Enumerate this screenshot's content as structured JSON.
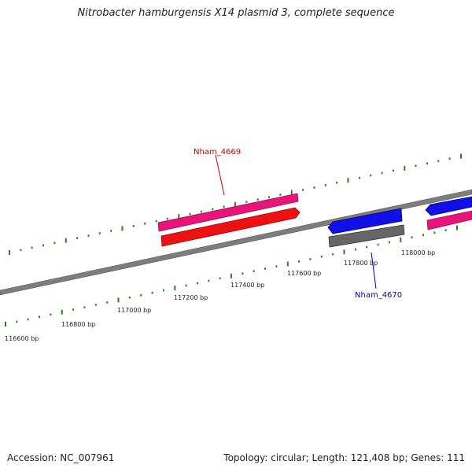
{
  "header": {
    "title": "Nitrobacter hamburgensis X14 plasmid 3, complete sequence"
  },
  "footer": {
    "accession": "Accession: NC_007961",
    "summary": "Topology: circular; Length: 121,408 bp; Genes: 111"
  },
  "colors": {
    "backbone": "#7a7a7a",
    "tick": "#2e7d1e",
    "forward_cds": "#e8147a",
    "forward_gene": "#ee1111",
    "reverse_cds": "#1010e6",
    "reverse_gene": "#666666",
    "label_forward": "#cc0000",
    "label_reverse": "#0000bb"
  },
  "scale": {
    "unit": "bp",
    "labels": [
      {
        "position": 116600,
        "text": "116600 bp"
      },
      {
        "position": 116800,
        "text": "116800 bp"
      },
      {
        "position": 117000,
        "text": "117000 bp"
      },
      {
        "position": 117200,
        "text": "117200 bp"
      },
      {
        "position": 117400,
        "text": "117400 bp"
      },
      {
        "position": 117600,
        "text": "117600 bp"
      },
      {
        "position": 117800,
        "text": "117800 bp"
      },
      {
        "position": 118000,
        "text": "118000 bp"
      }
    ]
  },
  "features": [
    {
      "name": "Nham_4669",
      "strand": "forward",
      "labeled": true
    },
    {
      "name": "Nham_4670",
      "strand": "reverse",
      "labeled": true
    },
    {
      "name": "",
      "strand": "forward",
      "labeled": false
    },
    {
      "name": "",
      "strand": "reverse",
      "labeled": false
    }
  ]
}
